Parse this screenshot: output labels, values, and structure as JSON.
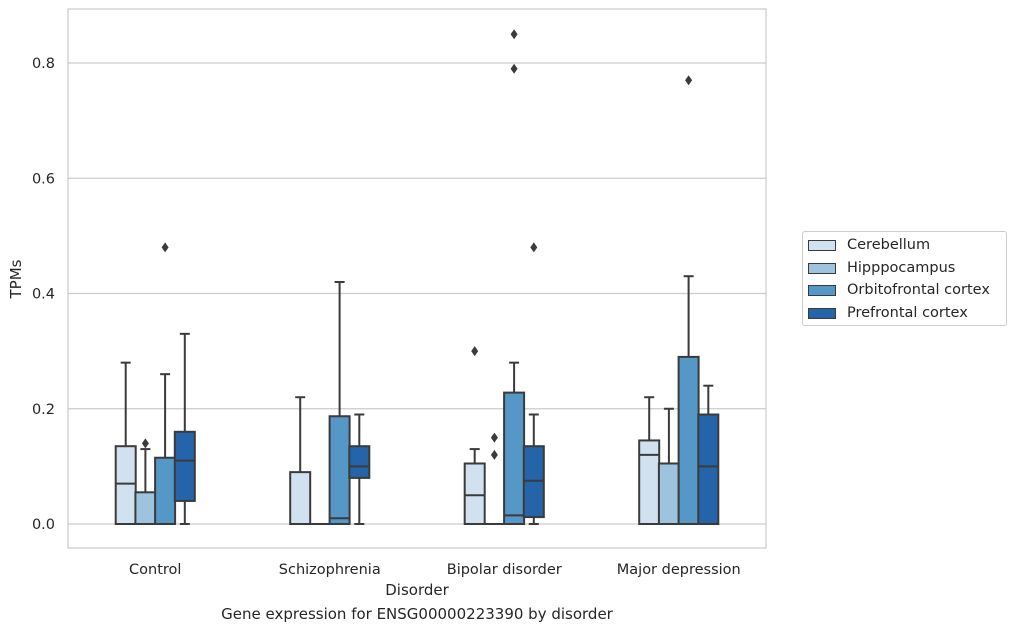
{
  "caption": "Gene expression for ENSG00000223390 by disorder",
  "chart_data": {
    "type": "box",
    "xlabel": "Disorder",
    "ylabel": "TPMs",
    "ylim": [
      -0.04,
      0.895
    ],
    "yticks": [
      0.0,
      0.2,
      0.4,
      0.6,
      0.8
    ],
    "ytick_labels": [
      "0.0",
      "0.2",
      "0.4",
      "0.6",
      "0.8"
    ],
    "grid": "horizontal",
    "legend_position": "right",
    "categories": [
      "Control",
      "Schizophrenia",
      "Bipolar disorder",
      "Major depression"
    ],
    "series": [
      {
        "name": "Cerebellum",
        "color": "#d1e1f0",
        "boxes": [
          {
            "q1": 0.0,
            "median": 0.07,
            "q3": 0.135,
            "whisker_low": 0.0,
            "whisker_high": 0.28,
            "outliers": []
          },
          {
            "q1": 0.0,
            "median": 0.0,
            "q3": 0.09,
            "whisker_low": 0.0,
            "whisker_high": 0.22,
            "outliers": []
          },
          {
            "q1": 0.0,
            "median": 0.05,
            "q3": 0.105,
            "whisker_low": 0.0,
            "whisker_high": 0.13,
            "outliers": [
              0.3
            ]
          },
          {
            "q1": 0.0,
            "median": 0.12,
            "q3": 0.145,
            "whisker_low": 0.0,
            "whisker_high": 0.22,
            "outliers": []
          }
        ]
      },
      {
        "name": "Hipppocampus",
        "color": "#9dc3de",
        "boxes": [
          {
            "q1": 0.0,
            "median": 0.0,
            "q3": 0.055,
            "whisker_low": 0.0,
            "whisker_high": 0.13,
            "outliers": [
              0.14
            ]
          },
          {
            "q1": 0.0,
            "median": 0.0,
            "q3": 0.0,
            "whisker_low": 0.0,
            "whisker_high": 0.0,
            "outliers": []
          },
          {
            "q1": 0.0,
            "median": 0.0,
            "q3": 0.0,
            "whisker_low": 0.0,
            "whisker_high": 0.0,
            "outliers": [
              0.12,
              0.15
            ]
          },
          {
            "q1": 0.0,
            "median": 0.0,
            "q3": 0.105,
            "whisker_low": 0.0,
            "whisker_high": 0.2,
            "outliers": []
          }
        ]
      },
      {
        "name": "Orbitofrontal cortex",
        "color": "#5597c6",
        "boxes": [
          {
            "q1": 0.0,
            "median": 0.0,
            "q3": 0.115,
            "whisker_low": 0.0,
            "whisker_high": 0.26,
            "outliers": [
              0.48
            ]
          },
          {
            "q1": 0.0,
            "median": 0.01,
            "q3": 0.187,
            "whisker_low": 0.0,
            "whisker_high": 0.42,
            "outliers": []
          },
          {
            "q1": 0.0,
            "median": 0.015,
            "q3": 0.228,
            "whisker_low": 0.0,
            "whisker_high": 0.28,
            "outliers": [
              0.79,
              0.85
            ]
          },
          {
            "q1": 0.0,
            "median": 0.0,
            "q3": 0.29,
            "whisker_low": 0.0,
            "whisker_high": 0.43,
            "outliers": [
              0.77
            ]
          }
        ]
      },
      {
        "name": "Prefrontal cortex",
        "color": "#2564a8",
        "boxes": [
          {
            "q1": 0.04,
            "median": 0.11,
            "q3": 0.16,
            "whisker_low": 0.0,
            "whisker_high": 0.33,
            "outliers": []
          },
          {
            "q1": 0.08,
            "median": 0.1,
            "q3": 0.135,
            "whisker_low": 0.0,
            "whisker_high": 0.19,
            "outliers": []
          },
          {
            "q1": 0.012,
            "median": 0.075,
            "q3": 0.135,
            "whisker_low": 0.0,
            "whisker_high": 0.19,
            "outliers": [
              0.48
            ]
          },
          {
            "q1": 0.0,
            "median": 0.1,
            "q3": 0.19,
            "whisker_low": 0.0,
            "whisker_high": 0.24,
            "outliers": []
          }
        ]
      }
    ]
  }
}
